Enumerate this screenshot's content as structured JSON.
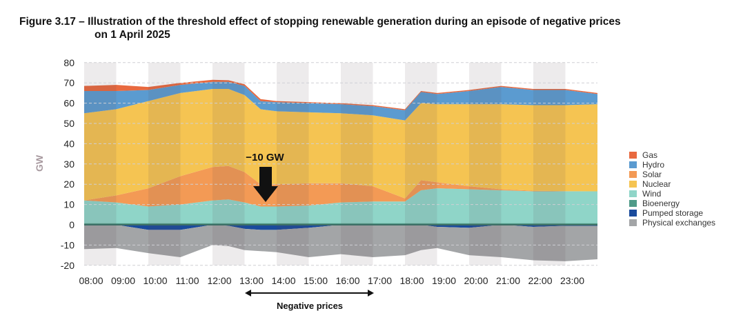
{
  "title_line1": "Figure 3.17 – Illustration of the threshold effect of stopping renewable generation during an episode of negative prices",
  "title_line2": "on 1 April 2025",
  "chart_data": {
    "type": "area",
    "stacked": true,
    "ylabel": "GW",
    "ylim": [
      -20,
      80
    ],
    "yticks": [
      80,
      70,
      60,
      50,
      40,
      30,
      20,
      10,
      0,
      -10,
      -20
    ],
    "grid": true,
    "legend_position": "right",
    "xlim": [
      "08:00",
      "24:00"
    ],
    "xtick_labels": [
      "08:00",
      "09:00",
      "10:00",
      "11:00",
      "12:00",
      "13:00",
      "14:00",
      "15:00",
      "16:00",
      "17:00",
      "18:00",
      "19:00",
      "20:00",
      "21:00",
      "22:00",
      "23:00"
    ],
    "shaded_hours": [
      "08:00",
      "10:00",
      "12:00",
      "14:00",
      "16:00",
      "18:00",
      "20:00",
      "22:00"
    ],
    "x": [
      "08:00",
      "09:00",
      "10:00",
      "11:00",
      "12:00",
      "12:30",
      "13:00",
      "13:30",
      "14:00",
      "15:00",
      "16:00",
      "17:00",
      "18:00",
      "18:30",
      "19:00",
      "20:00",
      "21:00",
      "22:00",
      "23:00",
      "24:00"
    ],
    "series": [
      {
        "name": "Bioenergy",
        "color": "#4f9a88",
        "values": [
          0.8,
          0.8,
          0.8,
          0.8,
          0.8,
          0.8,
          0.8,
          0.8,
          0.8,
          0.8,
          0.8,
          0.8,
          0.8,
          0.8,
          0.8,
          0.8,
          0.8,
          0.8,
          0.8,
          0.8
        ]
      },
      {
        "name": "Wind",
        "color": "#8fd5c8",
        "values": [
          11.2,
          10.2,
          8.2,
          9.2,
          11.2,
          11.7,
          10.2,
          8.2,
          8.2,
          8.7,
          10.2,
          10.7,
          10.7,
          16.2,
          17.2,
          16.7,
          16.2,
          15.7,
          15.7,
          15.7
        ]
      },
      {
        "name": "Solar",
        "color": "#f39a55",
        "values": [
          0,
          3.5,
          9,
          14,
          16.5,
          16.5,
          15,
          11,
          11,
          11,
          9.5,
          7.5,
          1.5,
          5,
          3,
          1.5,
          0.5,
          0.3,
          0.1,
          0
        ]
      },
      {
        "name": "Nuclear",
        "color": "#f5c452",
        "values": [
          43,
          42.5,
          43,
          41,
          38.5,
          38,
          38,
          37,
          36,
          35,
          34.5,
          35,
          38.5,
          38,
          38.5,
          40.5,
          42,
          42.2,
          42.4,
          43
        ]
      },
      {
        "name": "Hydro",
        "color": "#5b9bd0",
        "values": [
          11,
          9,
          5.5,
          4,
          3.5,
          3.5,
          4.5,
          4,
          4.5,
          4.5,
          4.5,
          4.5,
          5,
          5.5,
          5,
          6.5,
          8.5,
          7.5,
          7.5,
          5
        ]
      },
      {
        "name": "Gas",
        "color": "#e8693f",
        "values": [
          2.5,
          3,
          1.5,
          1,
          1,
          0.8,
          0.8,
          1,
          0.5,
          0.5,
          0.5,
          0.5,
          0.5,
          0.5,
          0.5,
          0.5,
          0.5,
          0.5,
          0.5,
          0.5
        ]
      },
      {
        "name": "Pumped storage",
        "color": "#1a4b9c",
        "values": [
          0,
          0,
          -2.5,
          -2.5,
          0,
          -0.5,
          -2,
          -2.5,
          -2.5,
          -1.5,
          0,
          0,
          0,
          0,
          -1,
          -1.5,
          0,
          -1,
          -0.5,
          -0.5
        ]
      },
      {
        "name": "Physical exchanges",
        "color": "#a3a5a7",
        "values": [
          -12,
          -11.5,
          -11.5,
          -13.5,
          -10,
          -10,
          -10.5,
          -10.5,
          -11,
          -14.5,
          -14.5,
          -16,
          -15,
          -12.5,
          -10.5,
          -13.5,
          -16,
          -16.5,
          -17.5,
          -16.5
        ]
      }
    ],
    "legend_order": [
      "Gas",
      "Hydro",
      "Solar",
      "Nuclear",
      "Wind",
      "Bioenergy",
      "Pumped storage",
      "Physical exchanges"
    ],
    "annotations": {
      "drop_label": "−10 GW",
      "drop_at": "13:45",
      "negative_prices_label": "Negative prices",
      "negative_prices_range": [
        "13:00",
        "17:00"
      ]
    }
  }
}
